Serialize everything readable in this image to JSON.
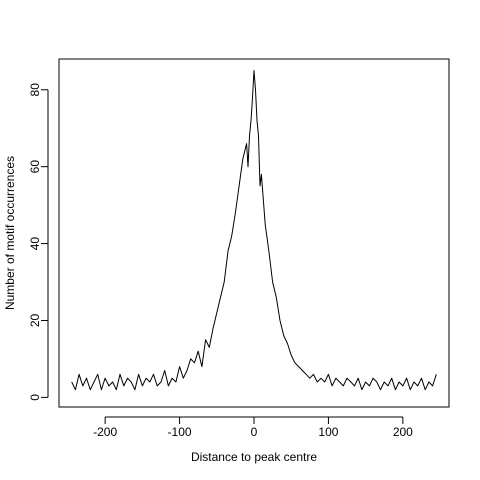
{
  "chart_data": {
    "type": "line",
    "title": "",
    "xlabel": "Distance to peak centre",
    "ylabel": "Number of motif occurrences",
    "xlim": [
      -262,
      262
    ],
    "ylim": [
      -2.5,
      88
    ],
    "x_ticks": [
      -200,
      -100,
      0,
      100,
      200
    ],
    "y_ticks": [
      0,
      20,
      40,
      60,
      80
    ],
    "x_tick_labels": [
      "-200",
      "-100",
      "0",
      "100",
      "200"
    ],
    "y_tick_labels": [
      "0",
      "20",
      "40",
      "60",
      "80"
    ],
    "grid": false,
    "legend": "none",
    "line_color": "#000000",
    "series": [
      {
        "x": [
          -245,
          -240,
          -235,
          -230,
          -225,
          -220,
          -215,
          -210,
          -205,
          -200,
          -195,
          -190,
          -185,
          -180,
          -175,
          -170,
          -165,
          -160,
          -155,
          -150,
          -145,
          -140,
          -135,
          -130,
          -125,
          -120,
          -115,
          -110,
          -105,
          -100,
          -95,
          -90,
          -85,
          -80,
          -75,
          -70,
          -65,
          -60,
          -55,
          -50,
          -45,
          -40,
          -35,
          -30,
          -25,
          -20,
          -15,
          -10,
          -8,
          -6,
          -4,
          -2,
          0,
          2,
          4,
          6,
          8,
          10,
          15,
          20,
          25,
          30,
          35,
          40,
          45,
          50,
          55,
          60,
          65,
          70,
          75,
          80,
          85,
          90,
          95,
          100,
          105,
          110,
          115,
          120,
          125,
          130,
          135,
          140,
          145,
          150,
          155,
          160,
          165,
          170,
          175,
          180,
          185,
          190,
          195,
          200,
          205,
          210,
          215,
          220,
          225,
          230,
          235,
          240,
          245
        ],
        "values": [
          4,
          2,
          6,
          3,
          5,
          2,
          4,
          6,
          2,
          5,
          3,
          4,
          2,
          6,
          3,
          5,
          4,
          2,
          6,
          3,
          5,
          4,
          6,
          3,
          4,
          7,
          3,
          5,
          4,
          8,
          5,
          7,
          10,
          9,
          12,
          8,
          15,
          13,
          18,
          22,
          26,
          30,
          38,
          42,
          48,
          55,
          62,
          66,
          60,
          68,
          72,
          78,
          85,
          80,
          72,
          68,
          55,
          58,
          45,
          38,
          30,
          26,
          20,
          16,
          14,
          11,
          9,
          8,
          7,
          6,
          5,
          6,
          4,
          5,
          4,
          6,
          3,
          5,
          4,
          3,
          5,
          4,
          3,
          5,
          2,
          4,
          3,
          5,
          4,
          2,
          4,
          3,
          5,
          2,
          4,
          3,
          5,
          2,
          4,
          3,
          5,
          2,
          4,
          3,
          6
        ]
      }
    ]
  }
}
